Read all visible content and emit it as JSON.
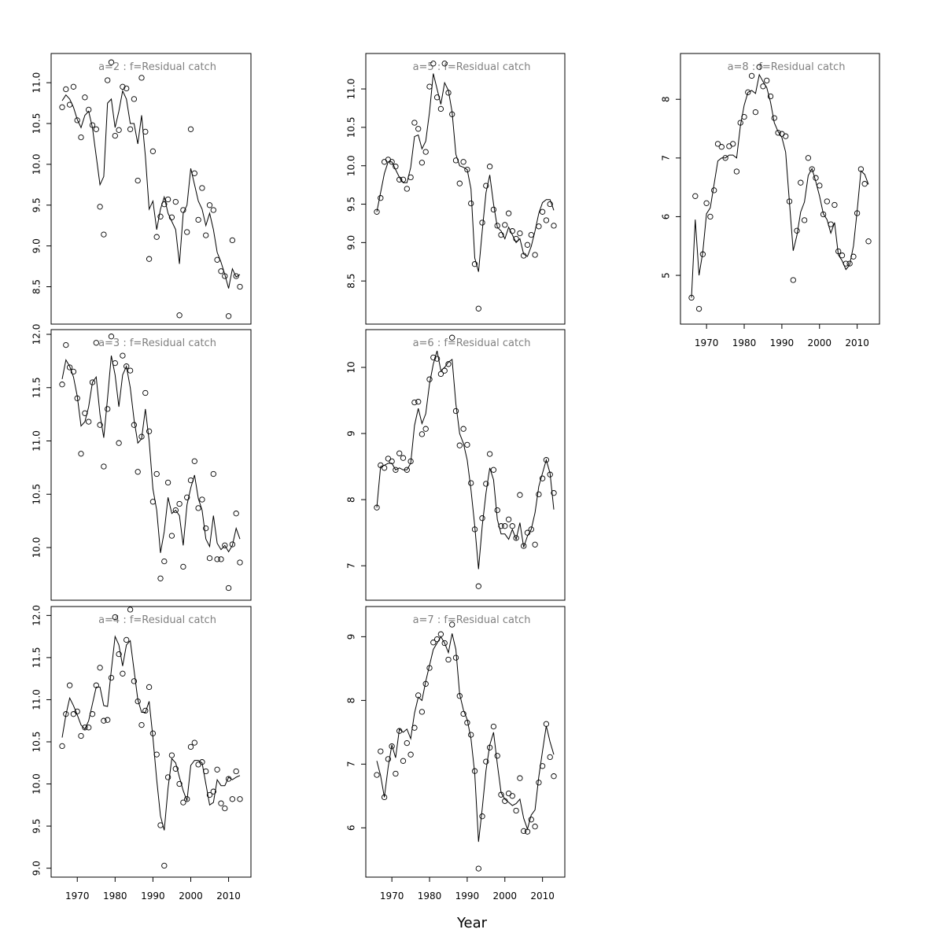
{
  "figure": {
    "xlabel": "Year"
  },
  "chart_data": [
    {
      "type": "scatter",
      "title": "a=2  :  f=Residual catch",
      "xlim": [
        1966,
        2013
      ],
      "ylim": [
        8.1,
        11.3
      ],
      "yticks": [
        8.5,
        9.0,
        9.5,
        10.0,
        10.5,
        11.0
      ],
      "xticks": [],
      "x": [
        1966,
        1967,
        1968,
        1969,
        1970,
        1971,
        1972,
        1973,
        1974,
        1975,
        1976,
        1977,
        1978,
        1979,
        1980,
        1981,
        1982,
        1983,
        1984,
        1985,
        1986,
        1987,
        1988,
        1989,
        1990,
        1991,
        1992,
        1993,
        1994,
        1995,
        1996,
        1997,
        1998,
        1999,
        2000,
        2001,
        2002,
        2003,
        2004,
        2005,
        2006,
        2007,
        2008,
        2009,
        2010,
        2011,
        2012,
        2013
      ],
      "points": [
        10.7,
        10.92,
        10.73,
        10.95,
        10.54,
        10.33,
        10.82,
        10.67,
        10.48,
        10.43,
        9.48,
        9.14,
        11.03,
        11.25,
        10.35,
        10.42,
        10.95,
        10.93,
        10.43,
        10.8,
        9.8,
        11.06,
        10.4,
        8.84,
        10.16,
        9.11,
        9.36,
        9.51,
        9.57,
        9.35,
        9.54,
        8.15,
        9.44,
        9.17,
        10.43,
        9.89,
        9.32,
        9.71,
        9.13,
        9.5,
        9.44,
        8.83,
        8.69,
        8.63,
        8.14,
        9.07,
        8.63,
        8.5
      ],
      "fitted": [
        10.78,
        10.85,
        10.8,
        10.7,
        10.55,
        10.45,
        10.6,
        10.65,
        10.45,
        10.1,
        9.75,
        9.85,
        10.75,
        10.8,
        10.45,
        10.65,
        10.9,
        10.8,
        10.5,
        10.5,
        10.25,
        10.6,
        10.1,
        9.45,
        9.55,
        9.2,
        9.45,
        9.6,
        9.4,
        9.3,
        9.2,
        8.78,
        9.4,
        9.5,
        9.95,
        9.75,
        9.55,
        9.45,
        9.25,
        9.4,
        9.2,
        8.92,
        8.8,
        8.65,
        8.48,
        8.72,
        8.62,
        8.65
      ]
    },
    {
      "type": "scatter",
      "title": "a=3  :  f=Residual catch",
      "xlim": [
        1966,
        2013
      ],
      "ylim": [
        9.55,
        12.0
      ],
      "yticks": [
        10.0,
        10.5,
        11.0,
        11.5,
        12.0
      ],
      "xticks": [],
      "x": [
        1966,
        1967,
        1968,
        1969,
        1970,
        1971,
        1972,
        1973,
        1974,
        1975,
        1976,
        1977,
        1978,
        1979,
        1980,
        1981,
        1982,
        1983,
        1984,
        1985,
        1986,
        1987,
        1988,
        1989,
        1990,
        1991,
        1992,
        1993,
        1994,
        1995,
        1996,
        1997,
        1998,
        1999,
        2000,
        2001,
        2002,
        2003,
        2004,
        2005,
        2006,
        2007,
        2008,
        2009,
        2010,
        2011,
        2012,
        2013
      ],
      "points": [
        11.53,
        11.9,
        11.69,
        11.65,
        11.4,
        10.88,
        11.26,
        11.18,
        11.55,
        11.92,
        11.15,
        10.76,
        11.3,
        11.98,
        11.73,
        10.98,
        11.8,
        11.7,
        11.66,
        11.15,
        10.71,
        11.04,
        11.45,
        11.09,
        10.43,
        10.69,
        9.71,
        9.87,
        10.61,
        10.11,
        10.35,
        10.41,
        9.82,
        10.47,
        10.63,
        10.81,
        10.37,
        10.45,
        10.18,
        9.9,
        10.69,
        9.89,
        9.89,
        10.02,
        9.62,
        10.03,
        10.32,
        9.86
      ],
      "fitted": [
        11.58,
        11.76,
        11.7,
        11.6,
        11.42,
        11.14,
        11.18,
        11.32,
        11.55,
        11.6,
        11.25,
        11.03,
        11.4,
        11.8,
        11.62,
        11.32,
        11.62,
        11.7,
        11.5,
        11.2,
        10.98,
        11.02,
        11.3,
        11.0,
        10.55,
        10.35,
        9.95,
        10.15,
        10.47,
        10.32,
        10.35,
        10.3,
        10.02,
        10.4,
        10.56,
        10.68,
        10.46,
        10.35,
        10.08,
        10.01,
        10.3,
        10.04,
        9.98,
        10.02,
        9.96,
        10.02,
        10.18,
        10.08
      ]
    },
    {
      "type": "scatter",
      "title": "a=4  :  f=Residual catch",
      "xlim": [
        1966,
        2013
      ],
      "ylim": [
        8.95,
        12.05
      ],
      "yticks": [
        9.0,
        9.5,
        10.0,
        10.5,
        11.0,
        11.5,
        12.0
      ],
      "xticks": [
        1970,
        1980,
        1990,
        2000,
        2010
      ],
      "x": [
        1966,
        1967,
        1968,
        1969,
        1970,
        1971,
        1972,
        1973,
        1974,
        1975,
        1976,
        1977,
        1978,
        1979,
        1980,
        1981,
        1982,
        1983,
        1984,
        1985,
        1986,
        1987,
        1988,
        1989,
        1990,
        1991,
        1992,
        1993,
        1994,
        1995,
        1996,
        1997,
        1998,
        1999,
        2000,
        2001,
        2002,
        2003,
        2004,
        2005,
        2006,
        2007,
        2008,
        2009,
        2010,
        2011,
        2012,
        2013
      ],
      "points": [
        10.45,
        10.83,
        11.17,
        10.83,
        10.86,
        10.57,
        10.67,
        10.67,
        10.83,
        11.17,
        11.38,
        10.75,
        10.76,
        11.26,
        11.98,
        11.54,
        11.31,
        11.71,
        12.07,
        11.22,
        10.98,
        10.7,
        10.87,
        11.15,
        10.6,
        10.35,
        9.51,
        9.03,
        10.08,
        10.34,
        10.18,
        10.0,
        9.78,
        9.82,
        10.44,
        10.49,
        10.23,
        10.26,
        10.15,
        9.87,
        9.91,
        10.17,
        9.77,
        9.71,
        10.06,
        9.82,
        10.15,
        9.82
      ],
      "fitted": [
        10.55,
        10.82,
        11.02,
        10.93,
        10.82,
        10.7,
        10.65,
        10.75,
        10.95,
        11.15,
        11.15,
        10.93,
        10.92,
        11.35,
        11.75,
        11.65,
        11.4,
        11.65,
        11.7,
        11.35,
        11.0,
        10.85,
        10.85,
        10.98,
        10.55,
        10.05,
        9.62,
        9.45,
        9.95,
        10.3,
        10.25,
        10.08,
        9.92,
        9.8,
        10.22,
        10.28,
        10.28,
        10.25,
        10.0,
        9.75,
        9.78,
        10.05,
        9.98,
        9.98,
        10.08,
        10.05,
        10.08,
        10.1
      ]
    },
    {
      "type": "scatter",
      "title": "a=5  :  f=Residual catch",
      "xlim": [
        1966,
        2013
      ],
      "ylim": [
        8.0,
        11.4
      ],
      "yticks": [
        8.5,
        9.0,
        9.5,
        10.0,
        10.5,
        11.0
      ],
      "xticks": [],
      "x": [
        1966,
        1967,
        1968,
        1969,
        1970,
        1971,
        1972,
        1973,
        1974,
        1975,
        1976,
        1977,
        1978,
        1979,
        1980,
        1981,
        1982,
        1983,
        1984,
        1985,
        1986,
        1987,
        1988,
        1989,
        1990,
        1991,
        1992,
        1993,
        1994,
        1995,
        1996,
        1997,
        1998,
        1999,
        2000,
        2001,
        2002,
        2003,
        2004,
        2005,
        2006,
        2007,
        2008,
        2009,
        2010,
        2011,
        2012,
        2013
      ],
      "points": [
        9.4,
        9.58,
        10.05,
        10.08,
        10.05,
        9.99,
        9.82,
        9.82,
        9.7,
        9.85,
        10.56,
        10.48,
        10.04,
        10.18,
        11.03,
        11.33,
        10.89,
        10.74,
        11.33,
        10.95,
        10.67,
        10.07,
        9.77,
        10.05,
        9.95,
        9.51,
        8.72,
        8.14,
        9.26,
        9.74,
        9.99,
        9.43,
        9.22,
        9.1,
        9.23,
        9.38,
        9.15,
        9.05,
        9.12,
        8.83,
        8.97,
        9.1,
        8.84,
        9.21,
        9.4,
        9.29,
        9.5,
        9.22
      ],
      "fitted": [
        9.4,
        9.65,
        9.9,
        10.05,
        10.05,
        9.95,
        9.85,
        9.78,
        9.78,
        9.98,
        10.38,
        10.4,
        10.22,
        10.32,
        10.7,
        11.2,
        11.0,
        10.8,
        11.08,
        10.98,
        10.7,
        10.15,
        10.0,
        9.98,
        9.95,
        9.7,
        8.8,
        8.62,
        9.15,
        9.65,
        9.88,
        9.5,
        9.2,
        9.15,
        9.05,
        9.2,
        9.1,
        9.0,
        9.05,
        8.85,
        8.82,
        8.95,
        9.15,
        9.38,
        9.52,
        9.56,
        9.56,
        9.42
      ]
    },
    {
      "type": "scatter",
      "title": "a=6  :  f=Residual catch",
      "xlim": [
        1966,
        2013
      ],
      "ylim": [
        6.55,
        10.5
      ],
      "yticks": [
        7,
        8,
        9,
        10
      ],
      "xticks": [],
      "x": [
        1966,
        1967,
        1968,
        1969,
        1970,
        1971,
        1972,
        1973,
        1974,
        1975,
        1976,
        1977,
        1978,
        1979,
        1980,
        1981,
        1982,
        1983,
        1984,
        1985,
        1986,
        1987,
        1988,
        1989,
        1990,
        1991,
        1992,
        1993,
        1994,
        1995,
        1996,
        1997,
        1998,
        1999,
        2000,
        2001,
        2002,
        2003,
        2004,
        2005,
        2006,
        2007,
        2008,
        2009,
        2010,
        2011,
        2012,
        2013
      ],
      "points": [
        7.88,
        8.52,
        8.48,
        8.62,
        8.58,
        8.45,
        8.7,
        8.63,
        8.45,
        8.58,
        9.47,
        9.48,
        8.99,
        9.07,
        9.82,
        10.15,
        10.13,
        9.9,
        9.95,
        10.05,
        10.45,
        9.34,
        8.82,
        9.07,
        8.83,
        8.25,
        7.55,
        6.69,
        7.72,
        8.24,
        8.69,
        8.45,
        7.84,
        7.6,
        7.6,
        7.7,
        7.6,
        7.42,
        8.07,
        7.3,
        7.5,
        7.55,
        7.32,
        8.08,
        8.32,
        8.6,
        8.38,
        8.1
      ],
      "fitted": [
        7.88,
        8.5,
        8.52,
        8.55,
        8.55,
        8.45,
        8.48,
        8.45,
        8.45,
        8.55,
        9.12,
        9.38,
        9.15,
        9.3,
        9.75,
        10.05,
        10.25,
        9.95,
        10.0,
        10.08,
        10.12,
        9.45,
        9.0,
        8.85,
        8.6,
        8.15,
        7.6,
        6.95,
        7.6,
        8.1,
        8.48,
        8.3,
        7.7,
        7.48,
        7.48,
        7.4,
        7.55,
        7.4,
        7.65,
        7.28,
        7.45,
        7.55,
        7.8,
        8.2,
        8.4,
        8.6,
        8.4,
        7.85
      ]
    },
    {
      "type": "scatter",
      "title": "a=7  :  f=Residual catch",
      "xlim": [
        1966,
        2013
      ],
      "ylim": [
        5.3,
        9.4
      ],
      "yticks": [
        6,
        7,
        8,
        9
      ],
      "xticks": [
        1970,
        1980,
        1990,
        2000,
        2010
      ],
      "x": [
        1966,
        1967,
        1968,
        1969,
        1970,
        1971,
        1972,
        1973,
        1974,
        1975,
        1976,
        1977,
        1978,
        1979,
        1980,
        1981,
        1982,
        1983,
        1984,
        1985,
        1986,
        1987,
        1988,
        1989,
        1990,
        1991,
        1992,
        1993,
        1994,
        1995,
        1996,
        1997,
        1998,
        1999,
        2000,
        2001,
        2002,
        2003,
        2004,
        2005,
        2006,
        2007,
        2008,
        2009,
        2010,
        2011,
        2012,
        2013
      ],
      "points": [
        6.83,
        7.2,
        6.48,
        7.08,
        7.28,
        6.85,
        7.52,
        7.05,
        7.33,
        7.15,
        7.57,
        8.08,
        7.82,
        8.26,
        8.51,
        8.91,
        8.96,
        9.04,
        8.9,
        8.64,
        9.19,
        8.67,
        8.07,
        7.79,
        7.65,
        7.46,
        6.89,
        5.36,
        6.18,
        7.04,
        7.26,
        7.59,
        7.13,
        6.52,
        6.42,
        6.54,
        6.5,
        6.27,
        6.78,
        5.95,
        5.94,
        6.13,
        6.02,
        6.71,
        6.97,
        7.63,
        7.11,
        6.81
      ],
      "fitted": [
        7.05,
        6.82,
        6.48,
        6.95,
        7.3,
        7.1,
        7.55,
        7.5,
        7.55,
        7.4,
        7.8,
        8.05,
        8.0,
        8.3,
        8.55,
        8.8,
        8.9,
        9.0,
        8.9,
        8.75,
        9.05,
        8.8,
        8.1,
        7.85,
        7.7,
        7.4,
        6.85,
        5.78,
        6.3,
        6.9,
        7.3,
        7.5,
        7.0,
        6.55,
        6.45,
        6.4,
        6.35,
        6.38,
        6.45,
        6.15,
        5.98,
        6.2,
        6.28,
        6.8,
        7.2,
        7.6,
        7.35,
        7.15
      ]
    },
    {
      "type": "scatter",
      "title": "a=8  :  f=Residual catch",
      "xlim": [
        1966,
        2013
      ],
      "ylim": [
        4.25,
        8.7
      ],
      "yticks": [
        5,
        6,
        7,
        8
      ],
      "xticks": [
        1970,
        1980,
        1990,
        2000,
        2010
      ],
      "x": [
        1966,
        1967,
        1968,
        1969,
        1970,
        1971,
        1972,
        1973,
        1974,
        1975,
        1976,
        1977,
        1978,
        1979,
        1980,
        1981,
        1982,
        1983,
        1984,
        1985,
        1986,
        1987,
        1988,
        1989,
        1990,
        1991,
        1992,
        1993,
        1994,
        1995,
        1996,
        1997,
        1998,
        1999,
        2000,
        2001,
        2002,
        2003,
        2004,
        2005,
        2006,
        2007,
        2008,
        2009,
        2010,
        2011,
        2012,
        2013
      ],
      "points": [
        4.62,
        6.35,
        4.43,
        5.36,
        6.23,
        6.0,
        6.45,
        7.24,
        7.19,
        7.0,
        7.2,
        7.24,
        6.77,
        7.6,
        7.7,
        8.12,
        8.4,
        7.78,
        8.55,
        8.22,
        8.32,
        8.05,
        7.68,
        7.43,
        7.41,
        7.37,
        6.26,
        4.92,
        5.76,
        6.58,
        5.94,
        7.0,
        6.81,
        6.66,
        6.53,
        6.04,
        6.26,
        5.87,
        6.2,
        5.41,
        5.34,
        5.2,
        5.2,
        5.32,
        6.06,
        6.81,
        6.56,
        5.58
      ],
      "fitted": [
        4.62,
        5.95,
        5.0,
        5.4,
        6.05,
        6.15,
        6.55,
        6.95,
        7.0,
        7.0,
        7.05,
        7.05,
        7.0,
        7.55,
        7.9,
        8.12,
        8.15,
        8.1,
        8.42,
        8.3,
        8.2,
        7.95,
        7.6,
        7.45,
        7.35,
        7.1,
        6.25,
        5.42,
        5.68,
        6.08,
        6.25,
        6.7,
        6.82,
        6.6,
        6.35,
        6.05,
        5.95,
        5.72,
        5.9,
        5.35,
        5.25,
        5.1,
        5.18,
        5.5,
        6.1,
        6.78,
        6.72,
        6.55
      ]
    }
  ]
}
